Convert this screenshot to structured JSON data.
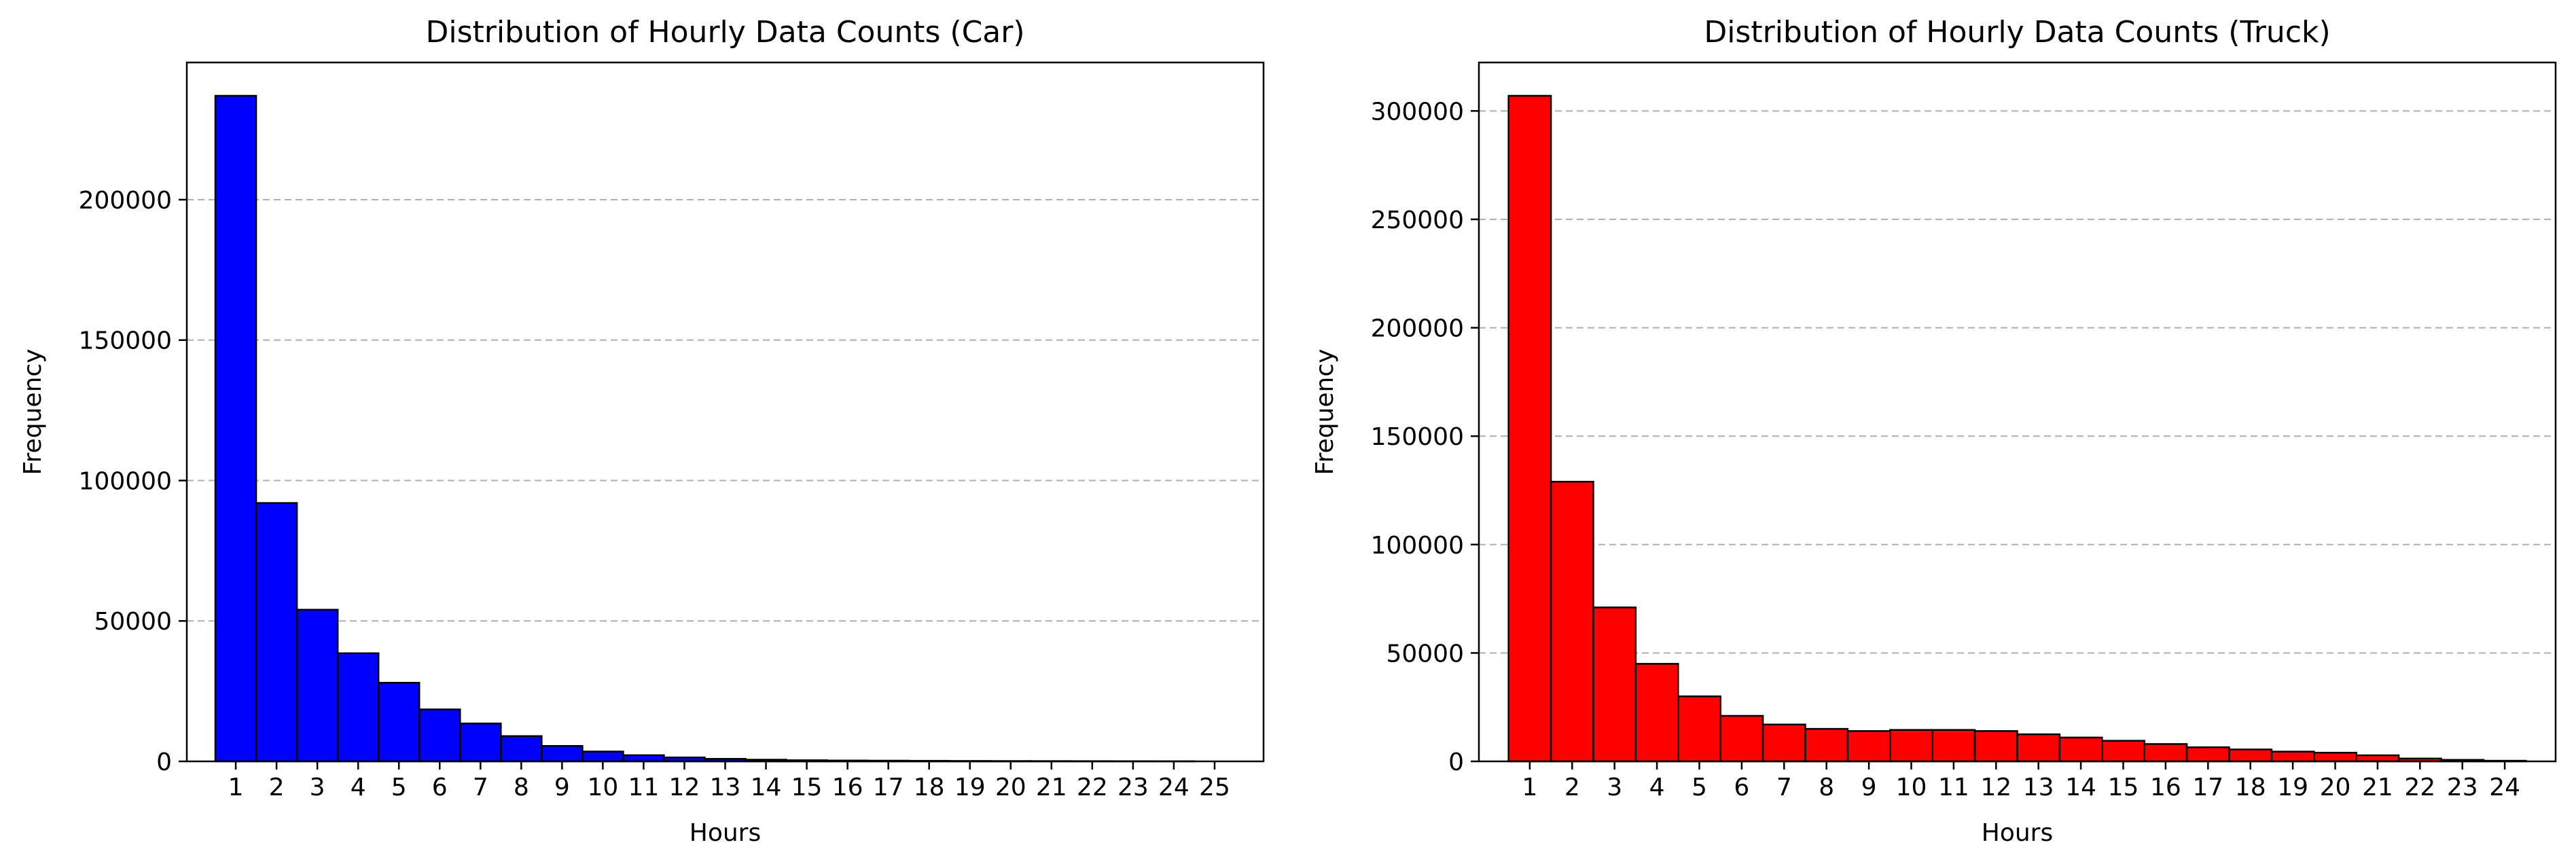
{
  "chart_data": [
    {
      "type": "bar",
      "title": "Distribution of Hourly Data Counts (Car)",
      "xlabel": "Hours",
      "ylabel": "Frequency",
      "color": "#0000ff",
      "categories": [
        "1",
        "2",
        "3",
        "4",
        "5",
        "6",
        "7",
        "8",
        "9",
        "10",
        "11",
        "12",
        "13",
        "14",
        "15",
        "16",
        "17",
        "18",
        "19",
        "20",
        "21",
        "22",
        "23",
        "24",
        "25"
      ],
      "values": [
        237000,
        92000,
        54000,
        38500,
        28000,
        18500,
        13500,
        9000,
        5500,
        3500,
        2200,
        1400,
        900,
        600,
        400,
        300,
        250,
        200,
        150,
        120,
        100,
        80,
        60,
        40,
        0
      ],
      "yticks": [
        0,
        50000,
        100000,
        150000,
        200000
      ],
      "ylim": [
        0,
        248850
      ],
      "xlim": [
        -0.2,
        26.2
      ],
      "grid": "y-dashed"
    },
    {
      "type": "bar",
      "title": "Distribution of Hourly Data Counts (Truck)",
      "xlabel": "Hours",
      "ylabel": "Frequency",
      "color": "#ff0000",
      "categories": [
        "1",
        "2",
        "3",
        "4",
        "5",
        "6",
        "7",
        "8",
        "9",
        "10",
        "11",
        "12",
        "13",
        "14",
        "15",
        "16",
        "17",
        "18",
        "19",
        "20",
        "21",
        "22",
        "23",
        "24"
      ],
      "values": [
        307000,
        129000,
        71000,
        45000,
        30000,
        21000,
        17000,
        15000,
        14000,
        14500,
        14500,
        14000,
        12500,
        11000,
        9500,
        8000,
        6500,
        5500,
        4500,
        4000,
        2800,
        1300,
        700,
        300
      ],
      "yticks": [
        0,
        50000,
        100000,
        150000,
        200000,
        250000,
        300000
      ],
      "ylim": [
        0,
        322350
      ],
      "xlim": [
        -0.2,
        25.2
      ],
      "grid": "y-dashed"
    }
  ]
}
